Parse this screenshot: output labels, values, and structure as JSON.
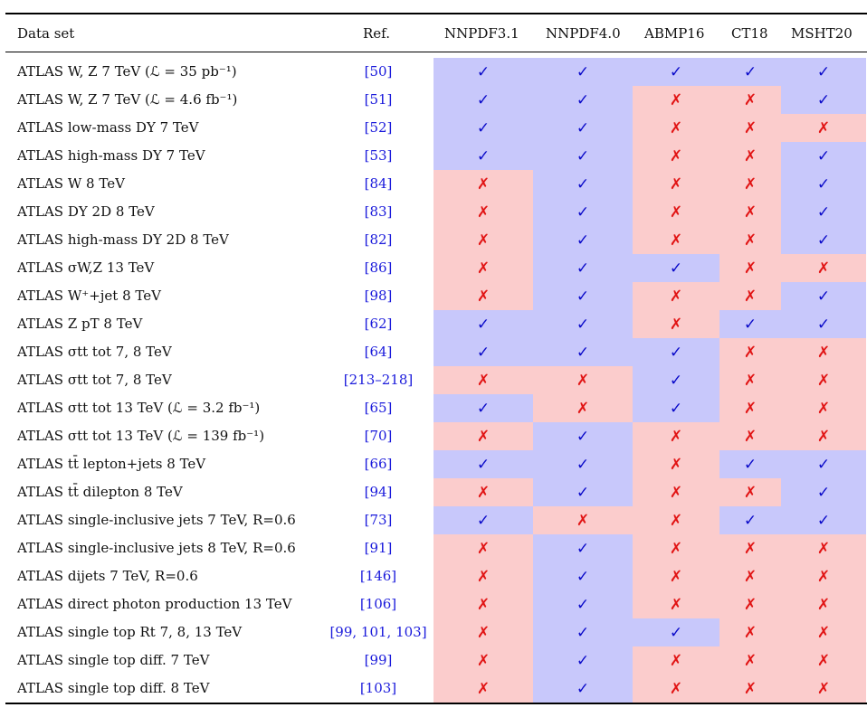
{
  "headers": {
    "dataset": "Data set",
    "ref": "Ref.",
    "fits": [
      "NNPDF3.1",
      "NNPDF4.0",
      "ABMP16",
      "CT18",
      "MSHT20"
    ]
  },
  "symbols": {
    "yes": "✓",
    "no": "✗"
  },
  "colors": {
    "included_bg": "#c8c8fb",
    "excluded_bg": "#fbcccc",
    "check": "#0a0ac9",
    "cross": "#e11414",
    "ref_link": "#1a1adb"
  },
  "rows": [
    {
      "label": "ATLAS W, Z 7 TeV (ℒ = 35 pb⁻¹)",
      "ref": "[50]",
      "marks": [
        1,
        1,
        1,
        1,
        1
      ]
    },
    {
      "label": "ATLAS W, Z 7 TeV (ℒ = 4.6 fb⁻¹)",
      "ref": "[51]",
      "marks": [
        1,
        1,
        0,
        0,
        1
      ]
    },
    {
      "label": "ATLAS low-mass DY 7 TeV",
      "ref": "[52]",
      "marks": [
        1,
        1,
        0,
        0,
        0
      ]
    },
    {
      "label": "ATLAS high-mass DY 7 TeV",
      "ref": "[53]",
      "marks": [
        1,
        1,
        0,
        0,
        1
      ]
    },
    {
      "label": "ATLAS W 8 TeV",
      "ref": "[84]",
      "marks": [
        0,
        1,
        0,
        0,
        1
      ]
    },
    {
      "label": "ATLAS DY 2D 8 TeV",
      "ref": "[83]",
      "marks": [
        0,
        1,
        0,
        0,
        1
      ]
    },
    {
      "label": "ATLAS high-mass DY 2D 8 TeV",
      "ref": "[82]",
      "marks": [
        0,
        1,
        0,
        0,
        1
      ]
    },
    {
      "label": "ATLAS σW,Z 13 TeV",
      "ref": "[86]",
      "marks": [
        0,
        1,
        1,
        0,
        0
      ]
    },
    {
      "label": "ATLAS W⁺+jet 8 TeV",
      "ref": "[98]",
      "marks": [
        0,
        1,
        0,
        0,
        1
      ]
    },
    {
      "label": "ATLAS Z pT 8 TeV",
      "ref": "[62]",
      "marks": [
        1,
        1,
        0,
        1,
        1
      ]
    },
    {
      "label": "ATLAS σtt tot 7, 8 TeV",
      "ref": "[64]",
      "marks": [
        1,
        1,
        1,
        0,
        0
      ]
    },
    {
      "label": "ATLAS σtt tot 7, 8 TeV",
      "ref": "[213–218]",
      "marks": [
        0,
        0,
        1,
        0,
        0
      ]
    },
    {
      "label": "ATLAS σtt tot 13 TeV (ℒ = 3.2 fb⁻¹)",
      "ref": "[65]",
      "marks": [
        1,
        0,
        1,
        0,
        0
      ]
    },
    {
      "label": "ATLAS σtt tot 13 TeV (ℒ = 139 fb⁻¹)",
      "ref": "[70]",
      "marks": [
        0,
        1,
        0,
        0,
        0
      ]
    },
    {
      "label": "ATLAS tt̄ lepton+jets 8 TeV",
      "ref": "[66]",
      "marks": [
        1,
        1,
        0,
        1,
        1
      ]
    },
    {
      "label": "ATLAS tt̄ dilepton 8 TeV",
      "ref": "[94]",
      "marks": [
        0,
        1,
        0,
        0,
        1
      ]
    },
    {
      "label": "ATLAS single-inclusive jets 7 TeV, R=0.6",
      "ref": "[73]",
      "marks": [
        1,
        0,
        0,
        1,
        1
      ]
    },
    {
      "label": "ATLAS single-inclusive jets 8 TeV, R=0.6",
      "ref": "[91]",
      "marks": [
        0,
        1,
        0,
        0,
        0
      ]
    },
    {
      "label": "ATLAS dijets 7 TeV, R=0.6",
      "ref": "[146]",
      "marks": [
        0,
        1,
        0,
        0,
        0
      ]
    },
    {
      "label": "ATLAS direct photon production 13 TeV",
      "ref": "[106]",
      "marks": [
        0,
        1,
        0,
        0,
        0
      ]
    },
    {
      "label": "ATLAS single top Rt 7, 8, 13 TeV",
      "ref": "[99, 101, 103]",
      "marks": [
        0,
        1,
        1,
        0,
        0
      ]
    },
    {
      "label": "ATLAS single top diff. 7 TeV",
      "ref": "[99]",
      "marks": [
        0,
        1,
        0,
        0,
        0
      ]
    },
    {
      "label": "ATLAS single top diff. 8 TeV",
      "ref": "[103]",
      "marks": [
        0,
        1,
        0,
        0,
        0
      ]
    }
  ]
}
